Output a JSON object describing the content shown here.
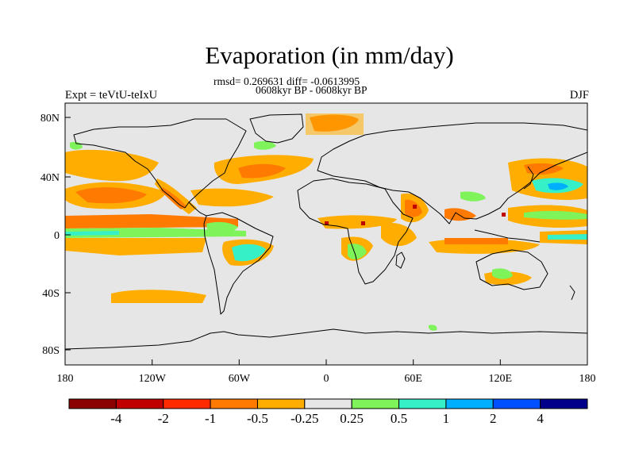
{
  "figure": {
    "title": "Evaporation (in mm/day)",
    "stats": "rmsd= 0.269631 diff= -0.0613995",
    "period": "0608kyr BP - 0608kyr BP",
    "experiment": "Expt = teVtU-teIxU",
    "season": "DJF"
  },
  "axes": {
    "lat_labels": [
      "80N",
      "40N",
      "0",
      "40S",
      "80S"
    ],
    "lon_labels": [
      "180",
      "120W",
      "60W",
      "0",
      "60E",
      "120E",
      "180"
    ]
  },
  "colorbar": {
    "colors": [
      "#8b0000",
      "#c00000",
      "#ff2a00",
      "#ff7a00",
      "#ffad00",
      "#e6e6e6",
      "#7ef35a",
      "#36f0c8",
      "#00b0ff",
      "#0050ff",
      "#00008b"
    ],
    "labels": [
      "-4",
      "-2",
      "-1",
      "-0.5",
      "-0.25",
      "0.25",
      "0.5",
      "1",
      "2",
      "4"
    ]
  },
  "map": {
    "background_color": "#e6e6e6",
    "coastline_color": "#000000"
  }
}
